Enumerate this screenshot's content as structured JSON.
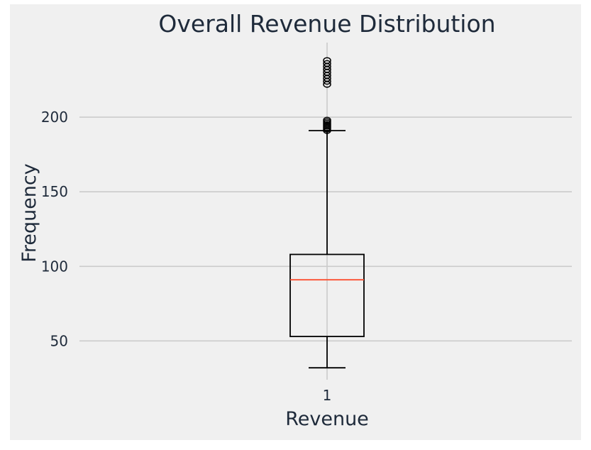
{
  "chart_data": {
    "type": "box",
    "title": "Overall Revenue Distribution",
    "xlabel": "Revenue",
    "ylabel": "Frequency",
    "categories": [
      "1"
    ],
    "ylim": [
      24,
      250
    ],
    "yticks": [
      50,
      100,
      150,
      200
    ],
    "grid": true,
    "boxes": [
      {
        "category": "1",
        "whisker_low": 32,
        "q1": 53,
        "median": 91,
        "q3": 108,
        "whisker_high": 191,
        "outliers": [
          191,
          192,
          193,
          194,
          195,
          196,
          197,
          198,
          222,
          224,
          226,
          228,
          230,
          232,
          234,
          236,
          238
        ]
      }
    ],
    "colors": {
      "background": "#f0f0f0",
      "grid": "#cbcbcb",
      "box": "#000000",
      "median": "#fc4f30",
      "text": "#1e2a3a"
    }
  }
}
